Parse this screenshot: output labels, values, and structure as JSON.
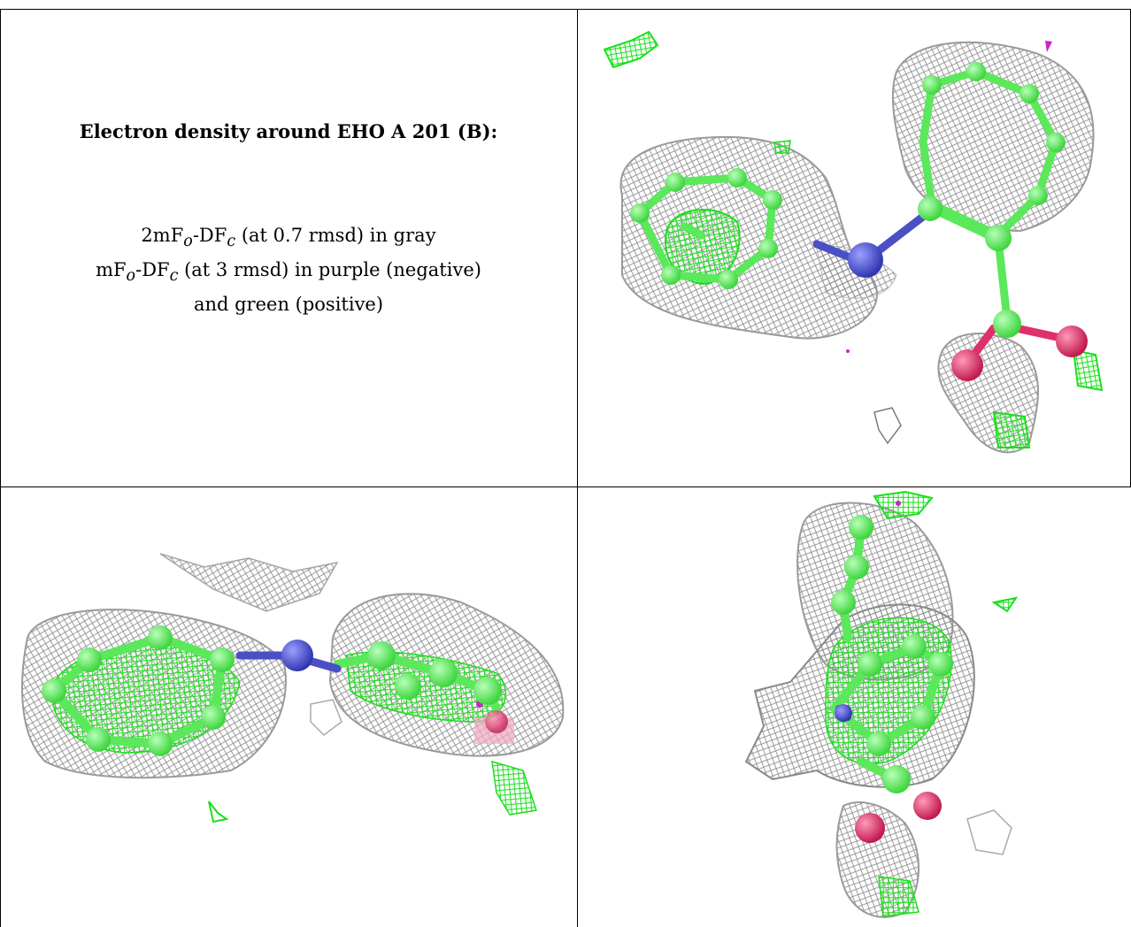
{
  "caption": {
    "title": "Electron density around EHO A 201 (B):",
    "line1_main": "2mF",
    "line1_sub_o": "o",
    "line1_mid": "-DF",
    "line1_sub_c": "c",
    "line1_rest": " (at 0.7 rmsd) in gray",
    "line2_main": "mF",
    "line2_sub_o": "o",
    "line2_mid": "-DF",
    "line2_sub_c": "c",
    "line2_rest": " (at 3 rmsd) in purple (negative)",
    "line3": "and green (positive)"
  },
  "panels": [
    {
      "name": "view-top-right",
      "description_icon": "molecule-density-render"
    },
    {
      "name": "view-bottom-left",
      "description_icon": "molecule-density-render"
    },
    {
      "name": "view-bottom-right",
      "description_icon": "molecule-density-render"
    }
  ],
  "colors": {
    "mesh_gray": "#9a9a9a",
    "carbon_green": "#5be85b",
    "positive_green": "#19e019",
    "nitrogen_blue": "#4a4fc4",
    "oxygen_red": "#e0306a",
    "negative_purple": "#cc22cc"
  }
}
